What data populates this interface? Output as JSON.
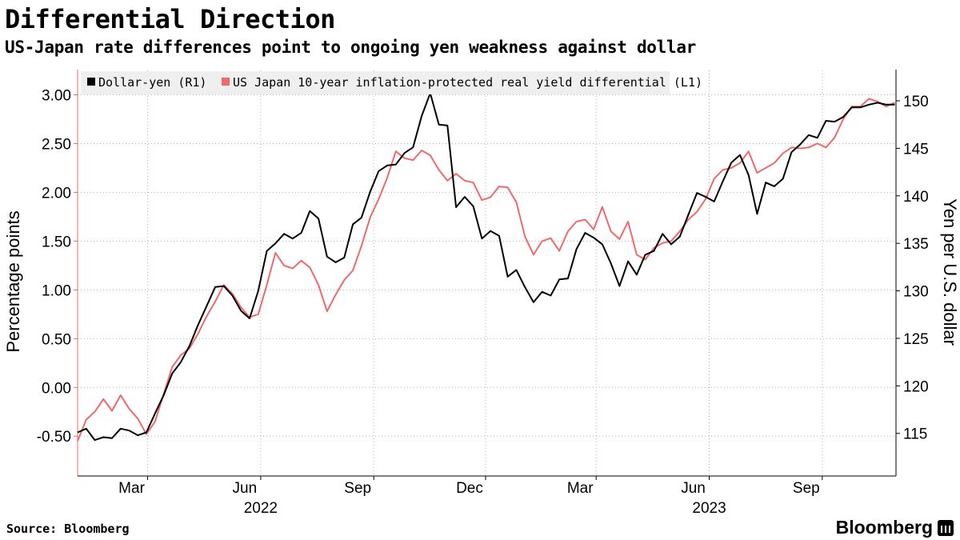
{
  "title": "Differential Direction",
  "subtitle": "US-Japan rate differences point to ongoing yen weakness against dollar",
  "source": "Source: Bloomberg",
  "brand": "Bloomberg",
  "colors": {
    "usdjpy": "#000000",
    "differential": "#f0696b",
    "grid": "#b4b4b4",
    "legend_bg": "#efefef"
  },
  "chart_data": {
    "type": "line",
    "legend": {
      "placement": "top-left",
      "entries": [
        "Dollar-yen (R1)",
        "US Japan 10-year inflation-protected real yield differential (L1)"
      ]
    },
    "x_range": [
      "2022-01-03",
      "2023-10-31"
    ],
    "x_ticks": [
      {
        "label": "Mar",
        "date": "2022-03-01"
      },
      {
        "label": "Jun",
        "date": "2022-06-01"
      },
      {
        "label": "Sep",
        "date": "2022-09-01"
      },
      {
        "label": "Dec",
        "date": "2022-12-01"
      },
      {
        "label": "Mar",
        "date": "2023-03-01"
      },
      {
        "label": "Jun",
        "date": "2023-06-01"
      },
      {
        "label": "Sep",
        "date": "2023-09-01"
      }
    ],
    "year_labels": [
      {
        "label": "2022",
        "date": "2022-06-01"
      },
      {
        "label": "2023",
        "date": "2023-06-01"
      }
    ],
    "y_left": {
      "label": "Percentage points",
      "min": -0.9,
      "max": 3.25,
      "ticks": [
        "3.00",
        "2.50",
        "2.00",
        "1.50",
        "1.00",
        "0.50",
        "0.00",
        "-0.50"
      ]
    },
    "y_right": {
      "label": "Yen per U.S. dollar",
      "min": 110.6,
      "max": 153.2,
      "ticks": [
        "150",
        "145",
        "140",
        "135",
        "130",
        "125",
        "120",
        "115"
      ]
    },
    "series": [
      {
        "name": "Dollar-yen (R1)",
        "axis": "right",
        "points": [
          [
            "2022-01-03",
            115.1
          ],
          [
            "2022-01-10",
            115.5
          ],
          [
            "2022-01-17",
            114.3
          ],
          [
            "2022-01-24",
            114.6
          ],
          [
            "2022-01-31",
            114.5
          ],
          [
            "2022-02-07",
            115.5
          ],
          [
            "2022-02-14",
            115.3
          ],
          [
            "2022-02-21",
            114.8
          ],
          [
            "2022-02-28",
            115.1
          ],
          [
            "2022-03-07",
            117.1
          ],
          [
            "2022-03-14",
            119.0
          ],
          [
            "2022-03-21",
            121.3
          ],
          [
            "2022-03-28",
            122.5
          ],
          [
            "2022-04-04",
            124.2
          ],
          [
            "2022-04-11",
            126.4
          ],
          [
            "2022-04-18",
            128.4
          ],
          [
            "2022-04-25",
            130.4
          ],
          [
            "2022-05-02",
            130.5
          ],
          [
            "2022-05-09",
            129.5
          ],
          [
            "2022-05-16",
            127.9
          ],
          [
            "2022-05-23",
            127.1
          ],
          [
            "2022-05-30",
            130.0
          ],
          [
            "2022-06-06",
            134.2
          ],
          [
            "2022-06-13",
            135.0
          ],
          [
            "2022-06-20",
            136.0
          ],
          [
            "2022-06-27",
            135.5
          ],
          [
            "2022-07-04",
            136.1
          ],
          [
            "2022-07-11",
            138.4
          ],
          [
            "2022-07-18",
            137.6
          ],
          [
            "2022-07-25",
            133.6
          ],
          [
            "2022-08-01",
            133.0
          ],
          [
            "2022-08-08",
            133.5
          ],
          [
            "2022-08-15",
            137.0
          ],
          [
            "2022-08-22",
            137.7
          ],
          [
            "2022-08-29",
            140.4
          ],
          [
            "2022-09-05",
            142.6
          ],
          [
            "2022-09-12",
            143.2
          ],
          [
            "2022-09-19",
            143.3
          ],
          [
            "2022-09-26",
            144.5
          ],
          [
            "2022-10-03",
            145.1
          ],
          [
            "2022-10-10",
            148.4
          ],
          [
            "2022-10-17",
            150.8
          ],
          [
            "2022-10-24",
            147.5
          ],
          [
            "2022-10-31",
            147.4
          ],
          [
            "2022-11-07",
            138.8
          ],
          [
            "2022-11-14",
            139.9
          ],
          [
            "2022-11-21",
            138.9
          ],
          [
            "2022-11-28",
            135.5
          ],
          [
            "2022-12-05",
            136.3
          ],
          [
            "2022-12-12",
            135.8
          ],
          [
            "2022-12-19",
            131.5
          ],
          [
            "2022-12-26",
            132.2
          ],
          [
            "2023-01-02",
            130.4
          ],
          [
            "2023-01-09",
            128.8
          ],
          [
            "2023-01-16",
            129.9
          ],
          [
            "2023-01-23",
            129.5
          ],
          [
            "2023-01-30",
            131.2
          ],
          [
            "2023-02-06",
            131.3
          ],
          [
            "2023-02-13",
            134.4
          ],
          [
            "2023-02-20",
            136.1
          ],
          [
            "2023-02-27",
            135.6
          ],
          [
            "2023-03-06",
            134.9
          ],
          [
            "2023-03-13",
            132.9
          ],
          [
            "2023-03-20",
            130.5
          ],
          [
            "2023-03-27",
            133.1
          ],
          [
            "2023-04-03",
            131.7
          ],
          [
            "2023-04-10",
            133.8
          ],
          [
            "2023-04-17",
            134.2
          ],
          [
            "2023-04-24",
            136.0
          ],
          [
            "2023-05-01",
            134.9
          ],
          [
            "2023-05-08",
            135.7
          ],
          [
            "2023-05-15",
            138.0
          ],
          [
            "2023-05-22",
            140.3
          ],
          [
            "2023-05-29",
            139.9
          ],
          [
            "2023-06-05",
            139.4
          ],
          [
            "2023-06-12",
            141.5
          ],
          [
            "2023-06-19",
            143.5
          ],
          [
            "2023-06-26",
            144.3
          ],
          [
            "2023-07-03",
            142.2
          ],
          [
            "2023-07-10",
            138.1
          ],
          [
            "2023-07-17",
            141.4
          ],
          [
            "2023-07-24",
            141.0
          ],
          [
            "2023-07-31",
            141.8
          ],
          [
            "2023-08-07",
            144.6
          ],
          [
            "2023-08-14",
            145.4
          ],
          [
            "2023-08-21",
            146.4
          ],
          [
            "2023-08-28",
            146.1
          ],
          [
            "2023-09-04",
            147.9
          ],
          [
            "2023-09-11",
            147.8
          ],
          [
            "2023-09-18",
            148.3
          ],
          [
            "2023-09-25",
            149.3
          ],
          [
            "2023-10-02",
            149.3
          ],
          [
            "2023-10-09",
            149.6
          ],
          [
            "2023-10-16",
            149.8
          ],
          [
            "2023-10-23",
            149.6
          ],
          [
            "2023-10-30",
            149.6
          ]
        ]
      },
      {
        "name": "US Japan 10-year inflation-protected real yield differential (L1)",
        "axis": "left",
        "points": [
          [
            "2022-01-03",
            -0.55
          ],
          [
            "2022-01-10",
            -0.33
          ],
          [
            "2022-01-17",
            -0.25
          ],
          [
            "2022-01-24",
            -0.12
          ],
          [
            "2022-01-31",
            -0.24
          ],
          [
            "2022-02-07",
            -0.08
          ],
          [
            "2022-02-14",
            -0.22
          ],
          [
            "2022-02-21",
            -0.32
          ],
          [
            "2022-02-28",
            -0.48
          ],
          [
            "2022-03-07",
            -0.35
          ],
          [
            "2022-03-14",
            -0.07
          ],
          [
            "2022-03-21",
            0.21
          ],
          [
            "2022-03-28",
            0.33
          ],
          [
            "2022-04-04",
            0.4
          ],
          [
            "2022-04-11",
            0.55
          ],
          [
            "2022-04-18",
            0.73
          ],
          [
            "2022-04-25",
            0.88
          ],
          [
            "2022-05-02",
            1.05
          ],
          [
            "2022-05-09",
            0.96
          ],
          [
            "2022-05-16",
            0.82
          ],
          [
            "2022-05-23",
            0.72
          ],
          [
            "2022-05-30",
            0.75
          ],
          [
            "2022-06-06",
            1.05
          ],
          [
            "2022-06-13",
            1.38
          ],
          [
            "2022-06-20",
            1.25
          ],
          [
            "2022-06-27",
            1.22
          ],
          [
            "2022-07-04",
            1.3
          ],
          [
            "2022-07-11",
            1.23
          ],
          [
            "2022-07-18",
            1.05
          ],
          [
            "2022-07-25",
            0.78
          ],
          [
            "2022-08-01",
            0.95
          ],
          [
            "2022-08-08",
            1.1
          ],
          [
            "2022-08-15",
            1.2
          ],
          [
            "2022-08-22",
            1.45
          ],
          [
            "2022-08-29",
            1.74
          ],
          [
            "2022-09-05",
            1.93
          ],
          [
            "2022-09-12",
            2.15
          ],
          [
            "2022-09-19",
            2.42
          ],
          [
            "2022-09-26",
            2.35
          ],
          [
            "2022-10-03",
            2.33
          ],
          [
            "2022-10-10",
            2.43
          ],
          [
            "2022-10-17",
            2.38
          ],
          [
            "2022-10-24",
            2.23
          ],
          [
            "2022-10-31",
            2.12
          ],
          [
            "2022-11-07",
            2.19
          ],
          [
            "2022-11-14",
            2.12
          ],
          [
            "2022-11-21",
            2.1
          ],
          [
            "2022-11-28",
            1.92
          ],
          [
            "2022-12-05",
            1.95
          ],
          [
            "2022-12-12",
            2.06
          ],
          [
            "2022-12-19",
            2.05
          ],
          [
            "2022-12-26",
            1.9
          ],
          [
            "2023-01-02",
            1.55
          ],
          [
            "2023-01-09",
            1.36
          ],
          [
            "2023-01-16",
            1.5
          ],
          [
            "2023-01-23",
            1.53
          ],
          [
            "2023-01-30",
            1.4
          ],
          [
            "2023-02-06",
            1.6
          ],
          [
            "2023-02-13",
            1.7
          ],
          [
            "2023-02-20",
            1.72
          ],
          [
            "2023-02-27",
            1.62
          ],
          [
            "2023-03-06",
            1.85
          ],
          [
            "2023-03-13",
            1.6
          ],
          [
            "2023-03-20",
            1.52
          ],
          [
            "2023-03-27",
            1.7
          ],
          [
            "2023-04-03",
            1.36
          ],
          [
            "2023-04-10",
            1.31
          ],
          [
            "2023-04-17",
            1.43
          ],
          [
            "2023-04-24",
            1.48
          ],
          [
            "2023-05-01",
            1.5
          ],
          [
            "2023-05-08",
            1.6
          ],
          [
            "2023-05-15",
            1.72
          ],
          [
            "2023-05-22",
            1.8
          ],
          [
            "2023-05-29",
            1.93
          ],
          [
            "2023-06-05",
            2.14
          ],
          [
            "2023-06-12",
            2.23
          ],
          [
            "2023-06-19",
            2.25
          ],
          [
            "2023-06-26",
            2.3
          ],
          [
            "2023-07-03",
            2.42
          ],
          [
            "2023-07-10",
            2.2
          ],
          [
            "2023-07-17",
            2.25
          ],
          [
            "2023-07-24",
            2.3
          ],
          [
            "2023-07-31",
            2.4
          ],
          [
            "2023-08-07",
            2.46
          ],
          [
            "2023-08-14",
            2.45
          ],
          [
            "2023-08-21",
            2.46
          ],
          [
            "2023-08-28",
            2.5
          ],
          [
            "2023-09-04",
            2.46
          ],
          [
            "2023-09-11",
            2.56
          ],
          [
            "2023-09-18",
            2.75
          ],
          [
            "2023-09-25",
            2.88
          ],
          [
            "2023-10-02",
            2.88
          ],
          [
            "2023-10-09",
            2.96
          ],
          [
            "2023-10-16",
            2.93
          ],
          [
            "2023-10-23",
            2.88
          ],
          [
            "2023-10-30",
            2.92
          ]
        ]
      }
    ]
  }
}
